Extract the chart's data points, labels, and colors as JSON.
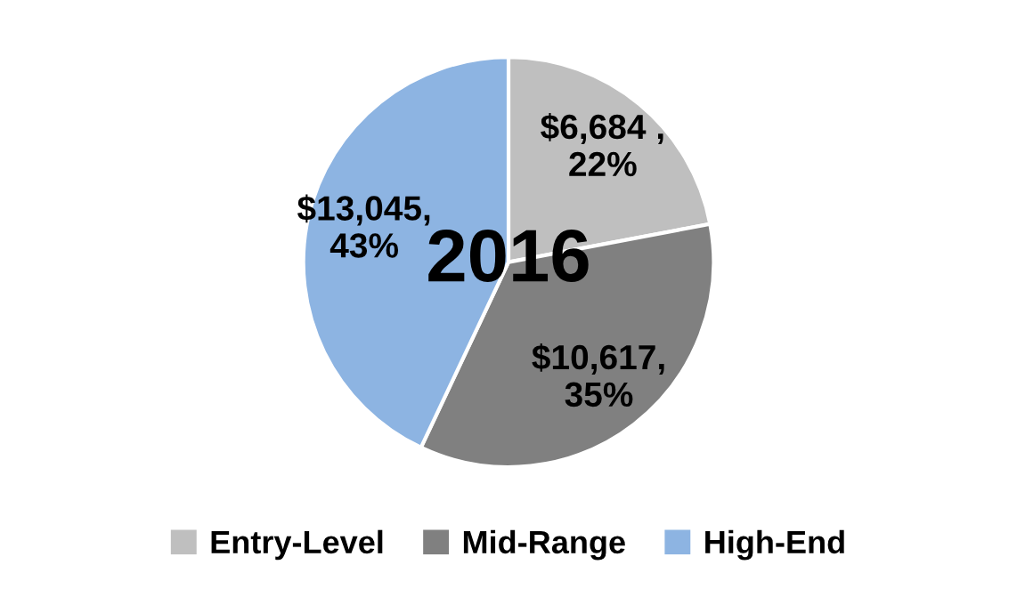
{
  "chart_data": {
    "type": "pie",
    "title": "2016",
    "categories": [
      "Entry-Level",
      "Mid-Range",
      "High-End"
    ],
    "values": [
      6684,
      10617,
      13045
    ],
    "colors": [
      "#bfbfbf",
      "#808080",
      "#8db4e2"
    ],
    "value_labels": [
      "$6,684 ,\n22%",
      "$10,617,\n35%",
      "$13,045,\n43%"
    ],
    "legend": "bottom"
  }
}
